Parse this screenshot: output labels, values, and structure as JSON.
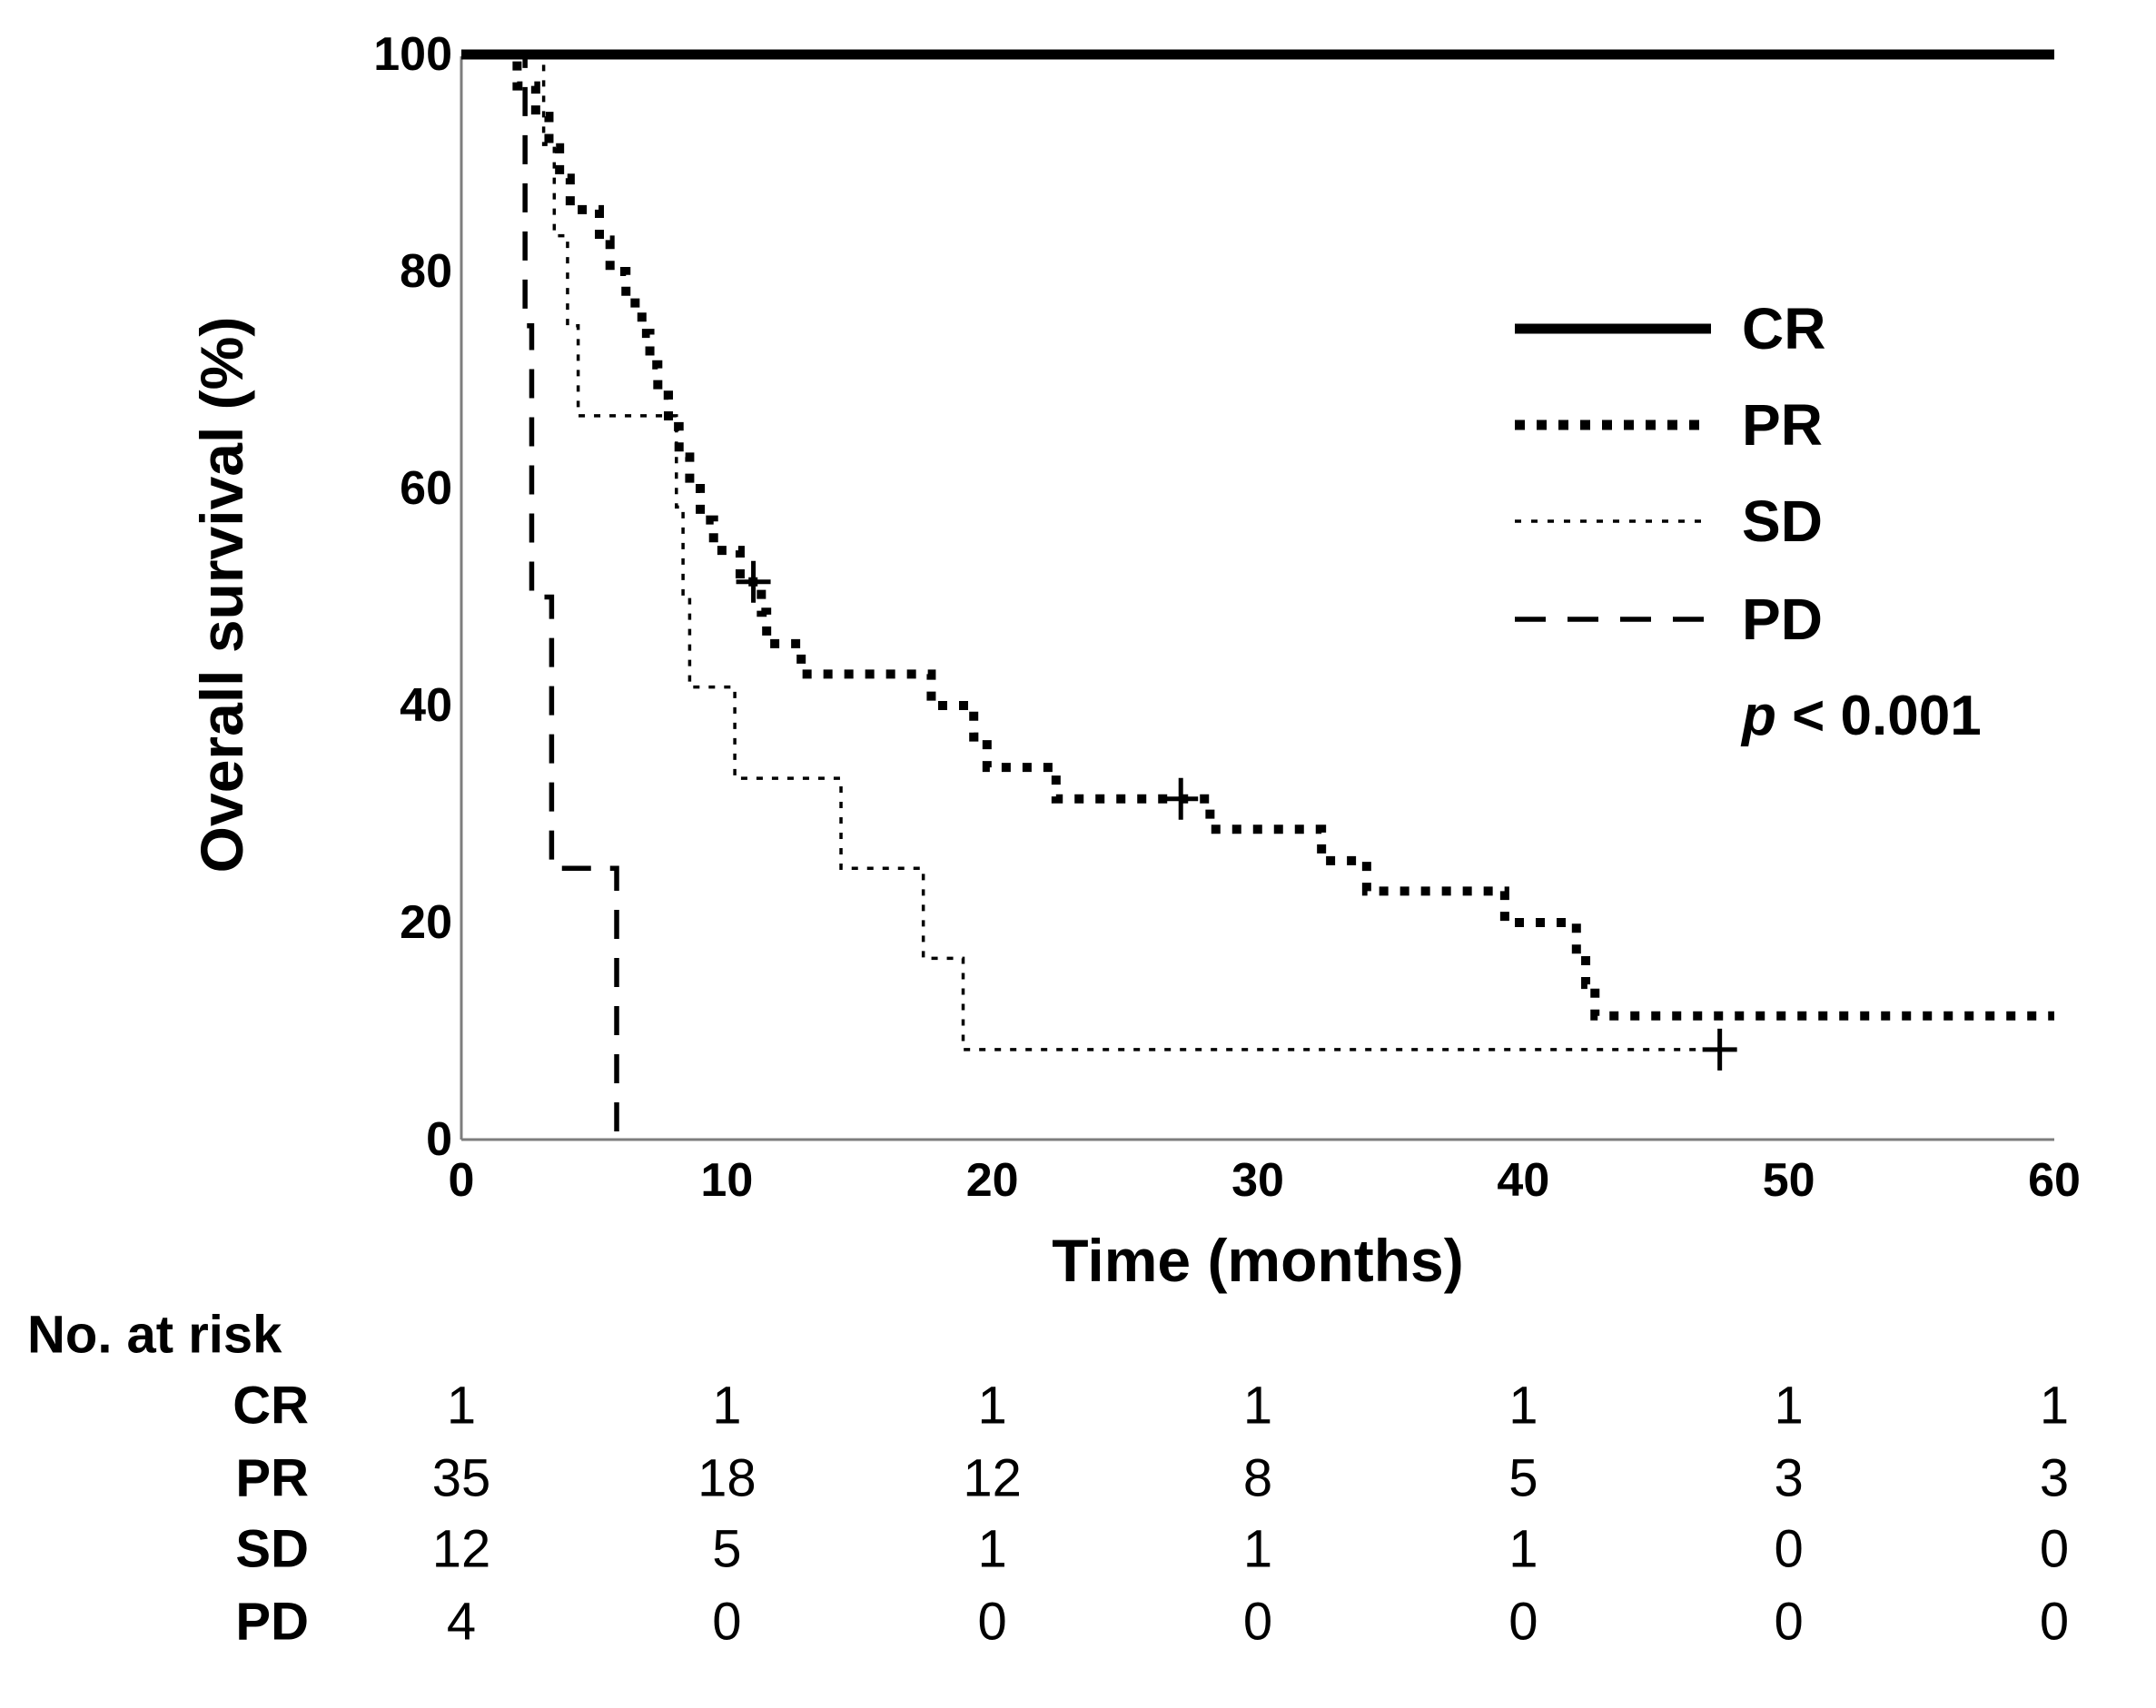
{
  "figure": {
    "kind": "kaplan-meier-survival-figure",
    "background": "#ffffff",
    "ink_color": "#000000",
    "frame_color": "#7d7d7d"
  },
  "legend": {
    "items": [
      {
        "id": "cr",
        "label": "CR"
      },
      {
        "id": "pr",
        "label": "PR"
      },
      {
        "id": "sd",
        "label": "SD"
      },
      {
        "id": "pd",
        "label": "PD"
      }
    ],
    "p_value_var": "p",
    "p_value_rest": " < 0.001"
  },
  "chart_data": {
    "type": "line",
    "subtype": "kaplan-meier-step",
    "title": "",
    "xlabel": "Time (months)",
    "ylabel": "Overall survival (%)",
    "xlim": [
      0,
      60
    ],
    "ylim": [
      0,
      100
    ],
    "x_ticks": [
      0,
      10,
      20,
      30,
      40,
      50,
      60
    ],
    "y_ticks": [
      0,
      20,
      40,
      60,
      80,
      100
    ],
    "grid": false,
    "legend_position": "upper right",
    "annotation": "p < 0.001",
    "series": [
      {
        "id": "cr",
        "name": "CR",
        "style": "solid-thick",
        "n": 1,
        "points": [
          [
            0,
            100
          ]
        ],
        "end_time": 60,
        "censors": []
      },
      {
        "id": "pr",
        "name": "PR",
        "style": "dotted-thick",
        "n": 35,
        "points": [
          [
            0,
            100
          ],
          [
            2.1,
            97.1
          ],
          [
            2.8,
            94.3
          ],
          [
            3.3,
            91.4
          ],
          [
            3.7,
            88.6
          ],
          [
            4.1,
            85.7
          ],
          [
            5.2,
            82.9
          ],
          [
            5.6,
            80.0
          ],
          [
            6.2,
            77.1
          ],
          [
            6.8,
            74.3
          ],
          [
            7.1,
            71.4
          ],
          [
            7.4,
            68.6
          ],
          [
            7.8,
            65.7
          ],
          [
            8.2,
            62.9
          ],
          [
            8.6,
            60.0
          ],
          [
            9.0,
            57.1
          ],
          [
            9.5,
            54.3
          ],
          [
            10.5,
            51.4
          ],
          [
            11.3,
            48.6
          ],
          [
            11.5,
            45.7
          ],
          [
            12.8,
            42.9
          ],
          [
            17.7,
            40.0
          ],
          [
            19.3,
            37.1
          ],
          [
            19.8,
            34.3
          ],
          [
            22.4,
            31.4
          ],
          [
            28.2,
            28.6
          ],
          [
            32.4,
            25.7
          ],
          [
            34.1,
            22.9
          ],
          [
            39.3,
            20.0
          ],
          [
            42.0,
            17.1
          ],
          [
            42.35,
            14.3
          ],
          [
            42.7,
            11.4
          ]
        ],
        "end_time": 60,
        "censors": [
          [
            11.0,
            51.4
          ],
          [
            27.1,
            31.4
          ]
        ]
      },
      {
        "id": "sd",
        "name": "SD",
        "style": "dotted-thin",
        "n": 12,
        "points": [
          [
            0,
            100
          ],
          [
            3.1,
            91.7
          ],
          [
            3.5,
            83.3
          ],
          [
            4.0,
            75.0
          ],
          [
            4.4,
            66.7
          ],
          [
            8.1,
            58.3
          ],
          [
            8.35,
            50.0
          ],
          [
            8.6,
            41.7
          ],
          [
            10.3,
            33.3
          ],
          [
            14.3,
            25.0
          ],
          [
            17.4,
            16.7
          ],
          [
            18.9,
            8.3
          ]
        ],
        "end_time": 47.4,
        "censors": [
          [
            47.4,
            8.3
          ]
        ]
      },
      {
        "id": "pd",
        "name": "PD",
        "style": "dashed",
        "n": 4,
        "points": [
          [
            0,
            100
          ],
          [
            2.4,
            75.0
          ],
          [
            2.65,
            50.0
          ],
          [
            3.4,
            25.0
          ],
          [
            5.85,
            0.0
          ]
        ],
        "end_time": 5.85,
        "censors": []
      }
    ],
    "risk_table": {
      "title": "No. at risk",
      "time_points": [
        0,
        10,
        20,
        30,
        40,
        50,
        60
      ],
      "rows": [
        {
          "label": "CR",
          "values": [
            1,
            1,
            1,
            1,
            1,
            1,
            1
          ]
        },
        {
          "label": "PR",
          "values": [
            35,
            18,
            12,
            8,
            5,
            3,
            3
          ]
        },
        {
          "label": "SD",
          "values": [
            12,
            5,
            1,
            1,
            1,
            0,
            0
          ]
        },
        {
          "label": "PD",
          "values": [
            4,
            0,
            0,
            0,
            0,
            0,
            0
          ]
        }
      ]
    }
  }
}
